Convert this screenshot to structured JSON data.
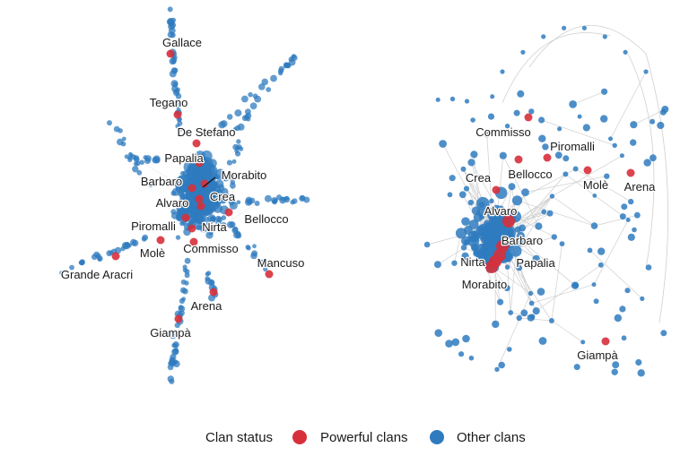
{
  "chart_data": {
    "type": "network",
    "colors": {
      "powerful": "#d7303b",
      "other": "#2f7bbf",
      "edge": "#cfcfcf"
    },
    "legend": {
      "title": "Clan status",
      "items": [
        {
          "key": "powerful",
          "label": "Powerful clans"
        },
        {
          "key": "other",
          "label": "Other clans"
        }
      ],
      "placement": "bottom"
    },
    "panels": [
      {
        "panel": "left",
        "powerful_labels": [
          "Gallace",
          "Tegano",
          "De Stefano",
          "Papalia",
          "Morabito",
          "Barbaro",
          "Crea",
          "Alvaro",
          "Bellocco",
          "Nirta",
          "Piromalli",
          "Commisso",
          "Molè",
          "Mancuso",
          "Grande Aracri",
          "Arena",
          "Giampà"
        ]
      },
      {
        "panel": "right",
        "powerful_labels": [
          "Commisso",
          "Piromalli",
          "Crea",
          "Bellocco",
          "Molè",
          "Arena",
          "Alvaro",
          "Barbaro",
          "Nirta",
          "Papalia",
          "Morabito",
          "Giampà"
        ]
      }
    ]
  }
}
